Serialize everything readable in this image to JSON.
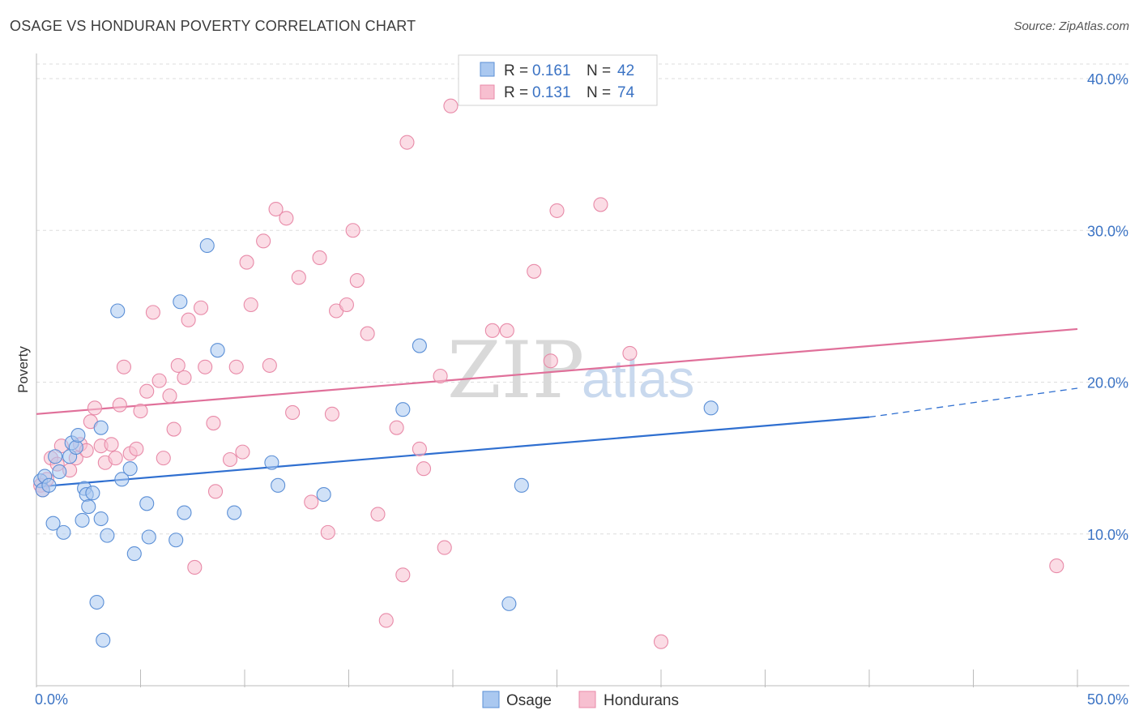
{
  "header": {
    "title": "OSAGE VS HONDURAN POVERTY CORRELATION CHART",
    "source": "Source: ZipAtlas.com"
  },
  "watermark": {
    "zip": "ZIP",
    "atlas": "atlas"
  },
  "colors": {
    "osage_fill": "#aac8f0",
    "osage_stroke": "#5b8fd6",
    "osage_line": "#2f6fd0",
    "hondurans_fill": "#f7bfd0",
    "hondurans_stroke": "#e88aa8",
    "hondurans_line": "#e0709a",
    "tick_label": "#3b73c4",
    "grid": "#dddddd"
  },
  "legend": {
    "rows": [
      {
        "r_label": "R =",
        "r_value": "0.161",
        "n_label": "N =",
        "n_value": "42"
      },
      {
        "r_label": "R =",
        "r_value": "0.131",
        "n_label": "N =",
        "n_value": "74"
      }
    ]
  },
  "bottom_legend": {
    "osage": "Osage",
    "hondurans": "Hondurans"
  },
  "chart_data": {
    "type": "scatter",
    "title": "OSAGE VS HONDURAN POVERTY CORRELATION CHART",
    "xlabel": "",
    "ylabel": "Poverty",
    "xlim": [
      0,
      50
    ],
    "ylim": [
      0,
      42
    ],
    "x_tick_labels": [
      "0.0%",
      "50.0%"
    ],
    "y_ticks": [
      10,
      20,
      30,
      40
    ],
    "y_tick_labels": [
      "10.0%",
      "20.0%",
      "30.0%",
      "40.0%"
    ],
    "grid": true,
    "legend_position": "top-center",
    "series": [
      {
        "name": "Osage",
        "r": 0.161,
        "n": 42,
        "trend": {
          "x": [
            0,
            40
          ],
          "y": [
            13.1,
            17.7
          ],
          "dashed_to": [
            50,
            19.6
          ]
        },
        "points": [
          [
            0.2,
            13.5
          ],
          [
            0.3,
            12.9
          ],
          [
            0.4,
            13.8
          ],
          [
            0.6,
            13.2
          ],
          [
            0.8,
            10.7
          ],
          [
            0.9,
            15.1
          ],
          [
            1.1,
            14.1
          ],
          [
            1.3,
            10.1
          ],
          [
            1.6,
            15.1
          ],
          [
            1.7,
            16.0
          ],
          [
            1.9,
            15.7
          ],
          [
            2.0,
            16.5
          ],
          [
            2.2,
            10.9
          ],
          [
            2.3,
            13.0
          ],
          [
            2.4,
            12.6
          ],
          [
            2.5,
            11.8
          ],
          [
            2.7,
            12.7
          ],
          [
            2.9,
            5.5
          ],
          [
            3.1,
            11.0
          ],
          [
            3.1,
            17.0
          ],
          [
            3.2,
            3.0
          ],
          [
            3.4,
            9.9
          ],
          [
            3.9,
            24.7
          ],
          [
            4.1,
            13.6
          ],
          [
            4.5,
            14.3
          ],
          [
            4.7,
            8.7
          ],
          [
            5.3,
            12.0
          ],
          [
            5.4,
            9.8
          ],
          [
            6.7,
            9.6
          ],
          [
            6.9,
            25.3
          ],
          [
            7.1,
            11.4
          ],
          [
            8.2,
            29.0
          ],
          [
            8.7,
            22.1
          ],
          [
            9.5,
            11.4
          ],
          [
            11.3,
            14.7
          ],
          [
            11.6,
            13.2
          ],
          [
            13.8,
            12.6
          ],
          [
            17.6,
            18.2
          ],
          [
            18.4,
            22.4
          ],
          [
            22.7,
            5.4
          ],
          [
            23.3,
            13.2
          ],
          [
            32.4,
            18.3
          ]
        ]
      },
      {
        "name": "Hondurans",
        "r": 0.131,
        "n": 74,
        "trend": {
          "x": [
            0,
            50
          ],
          "y": [
            17.9,
            23.5
          ]
        },
        "points": [
          [
            0.2,
            13.2
          ],
          [
            0.3,
            12.9
          ],
          [
            0.5,
            13.6
          ],
          [
            0.7,
            15.0
          ],
          [
            1.0,
            14.6
          ],
          [
            1.2,
            15.8
          ],
          [
            1.6,
            14.2
          ],
          [
            1.9,
            15.0
          ],
          [
            2.1,
            15.9
          ],
          [
            2.4,
            15.5
          ],
          [
            2.6,
            17.4
          ],
          [
            2.8,
            18.3
          ],
          [
            3.1,
            15.8
          ],
          [
            3.3,
            14.7
          ],
          [
            3.6,
            15.9
          ],
          [
            3.8,
            15.0
          ],
          [
            4.0,
            18.5
          ],
          [
            4.2,
            21.0
          ],
          [
            4.5,
            15.3
          ],
          [
            4.8,
            15.6
          ],
          [
            5.0,
            18.1
          ],
          [
            5.3,
            19.4
          ],
          [
            5.6,
            24.6
          ],
          [
            5.9,
            20.1
          ],
          [
            6.1,
            15.0
          ],
          [
            6.4,
            19.1
          ],
          [
            6.6,
            16.9
          ],
          [
            6.8,
            21.1
          ],
          [
            7.1,
            20.3
          ],
          [
            7.3,
            24.1
          ],
          [
            7.6,
            7.8
          ],
          [
            7.9,
            24.9
          ],
          [
            8.1,
            21.0
          ],
          [
            8.5,
            17.3
          ],
          [
            8.6,
            12.8
          ],
          [
            9.3,
            14.9
          ],
          [
            9.6,
            21.0
          ],
          [
            9.9,
            15.4
          ],
          [
            10.1,
            27.9
          ],
          [
            10.3,
            25.1
          ],
          [
            10.9,
            29.3
          ],
          [
            11.2,
            21.1
          ],
          [
            11.5,
            31.4
          ],
          [
            12.0,
            30.8
          ],
          [
            12.3,
            18.0
          ],
          [
            12.6,
            26.9
          ],
          [
            13.2,
            12.1
          ],
          [
            13.6,
            28.2
          ],
          [
            14.0,
            10.1
          ],
          [
            14.2,
            17.9
          ],
          [
            14.4,
            24.7
          ],
          [
            14.9,
            25.1
          ],
          [
            15.2,
            30.0
          ],
          [
            15.4,
            26.7
          ],
          [
            15.9,
            23.2
          ],
          [
            16.4,
            11.3
          ],
          [
            16.8,
            4.3
          ],
          [
            17.3,
            17.0
          ],
          [
            17.6,
            7.3
          ],
          [
            17.8,
            35.8
          ],
          [
            18.4,
            15.6
          ],
          [
            18.6,
            14.3
          ],
          [
            19.4,
            20.4
          ],
          [
            19.6,
            9.1
          ],
          [
            19.9,
            38.2
          ],
          [
            21.9,
            23.4
          ],
          [
            22.6,
            23.4
          ],
          [
            23.9,
            27.3
          ],
          [
            24.7,
            21.4
          ],
          [
            25.0,
            31.3
          ],
          [
            27.1,
            31.7
          ],
          [
            28.5,
            21.9
          ],
          [
            30.0,
            2.9
          ],
          [
            49.0,
            7.9
          ]
        ]
      }
    ]
  }
}
